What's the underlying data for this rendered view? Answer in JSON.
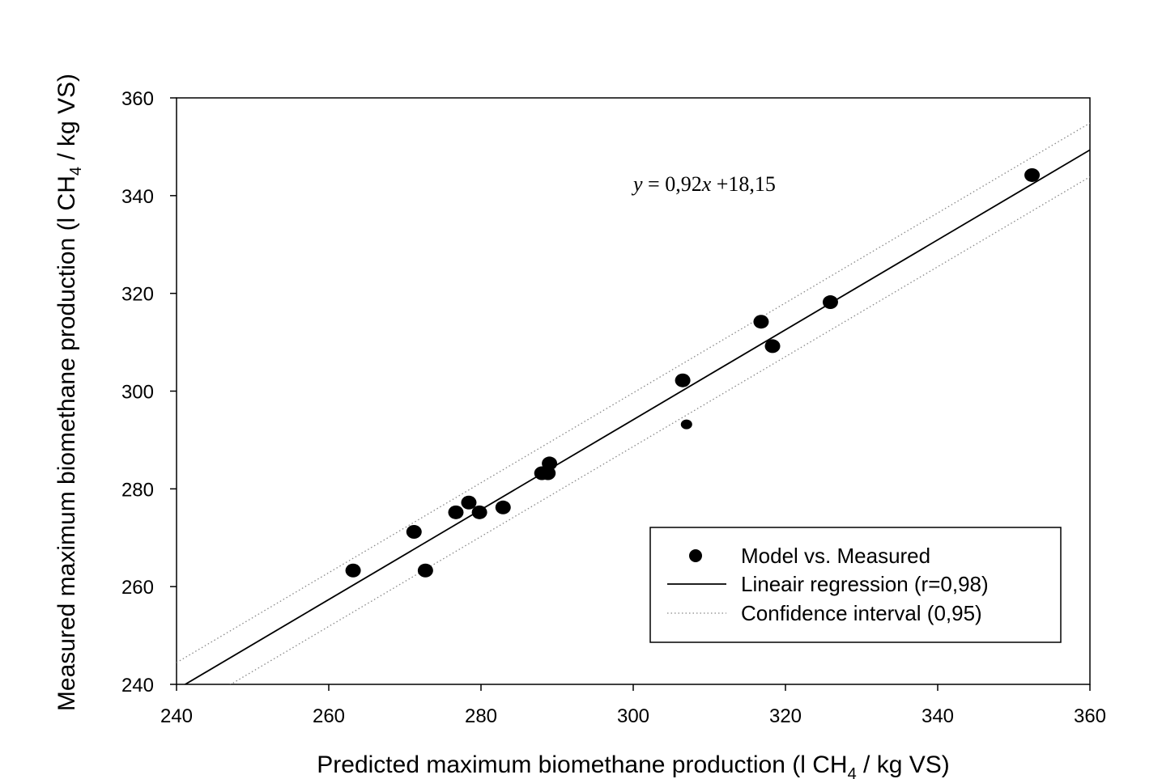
{
  "chart_data": {
    "type": "scatter",
    "xlabel": {
      "prefix": "Predicted maximum biomethane production (l CH",
      "sub": "4",
      "suffix": " / kg VS)"
    },
    "ylabel": {
      "prefix": "Measured maximum biomethane production (l CH",
      "sub": "4",
      "suffix": " / kg VS)"
    },
    "xlim": [
      240,
      360
    ],
    "ylim": [
      240,
      360
    ],
    "xticks": [
      "240",
      "260",
      "280",
      "300",
      "320",
      "340",
      "360"
    ],
    "yticks": [
      "240",
      "260",
      "280",
      "300",
      "320",
      "340",
      "360"
    ],
    "grid": false,
    "legend_position": "bottom-right",
    "annotation": {
      "y": "y",
      "eq": " = 0,92",
      "x": "x",
      "rest": " +18,15"
    },
    "regression": {
      "slope": 0.92,
      "intercept": 18.15
    },
    "confidence_offset": 5.5,
    "series": [
      {
        "name": "Model vs. Measured",
        "kind": "points",
        "color": "#000000",
        "points": [
          [
            263.2,
            263.3
          ],
          [
            271.2,
            271.2
          ],
          [
            272.7,
            263.3
          ],
          [
            276.7,
            275.2
          ],
          [
            278.4,
            277.2
          ],
          [
            279.8,
            275.2
          ],
          [
            282.9,
            276.2
          ],
          [
            288.0,
            283.2
          ],
          [
            288.8,
            283.2
          ],
          [
            289.0,
            285.2
          ],
          [
            306.5,
            302.2
          ],
          [
            307.0,
            293.2
          ],
          [
            316.8,
            314.2
          ],
          [
            318.3,
            309.2
          ],
          [
            325.9,
            318.2
          ],
          [
            352.4,
            344.2
          ]
        ]
      },
      {
        "name": "Lineair regression (r=0,98)",
        "kind": "line",
        "color": "#000000"
      },
      {
        "name": "Confidence interval (0,95)",
        "kind": "dotted",
        "color": "#888888"
      }
    ]
  }
}
